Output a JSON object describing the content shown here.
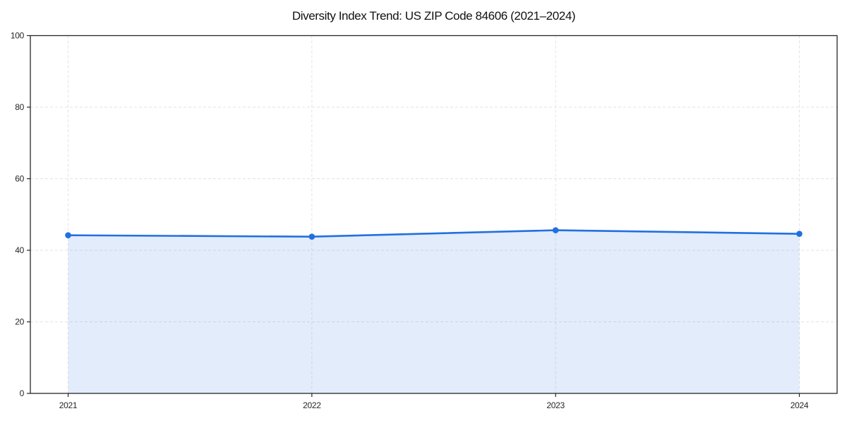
{
  "chart_data": {
    "type": "area",
    "title": "Diversity Index Trend: US ZIP Code 84606 (2021–2024)",
    "x": [
      2021,
      2022,
      2023,
      2024
    ],
    "x_tick_labels": [
      "2021",
      "2022",
      "2023",
      "2024"
    ],
    "series": [
      {
        "name": "Diversity Index",
        "values": [
          44.2,
          43.8,
          45.6,
          44.6
        ]
      }
    ],
    "xlim": [
      2020.845,
      2024.155
    ],
    "ylim": [
      0,
      100
    ],
    "yticks": [
      0,
      20,
      40,
      60,
      80,
      100
    ],
    "y_tick_labels": [
      "0",
      "20",
      "40",
      "60",
      "80",
      "100"
    ],
    "xlabel": "",
    "ylabel": "",
    "grid": true,
    "grid_style": "dashed",
    "legend": "none",
    "marker": "circle",
    "colors": {
      "line": "#2170e0",
      "marker": "#2170e0",
      "fill": "#2170e0",
      "fill_opacity": 0.13,
      "grid": "#e3e3e3",
      "spine": "#262626",
      "tick_label": "#262626",
      "title": "#111111",
      "background": "#ffffff"
    }
  }
}
